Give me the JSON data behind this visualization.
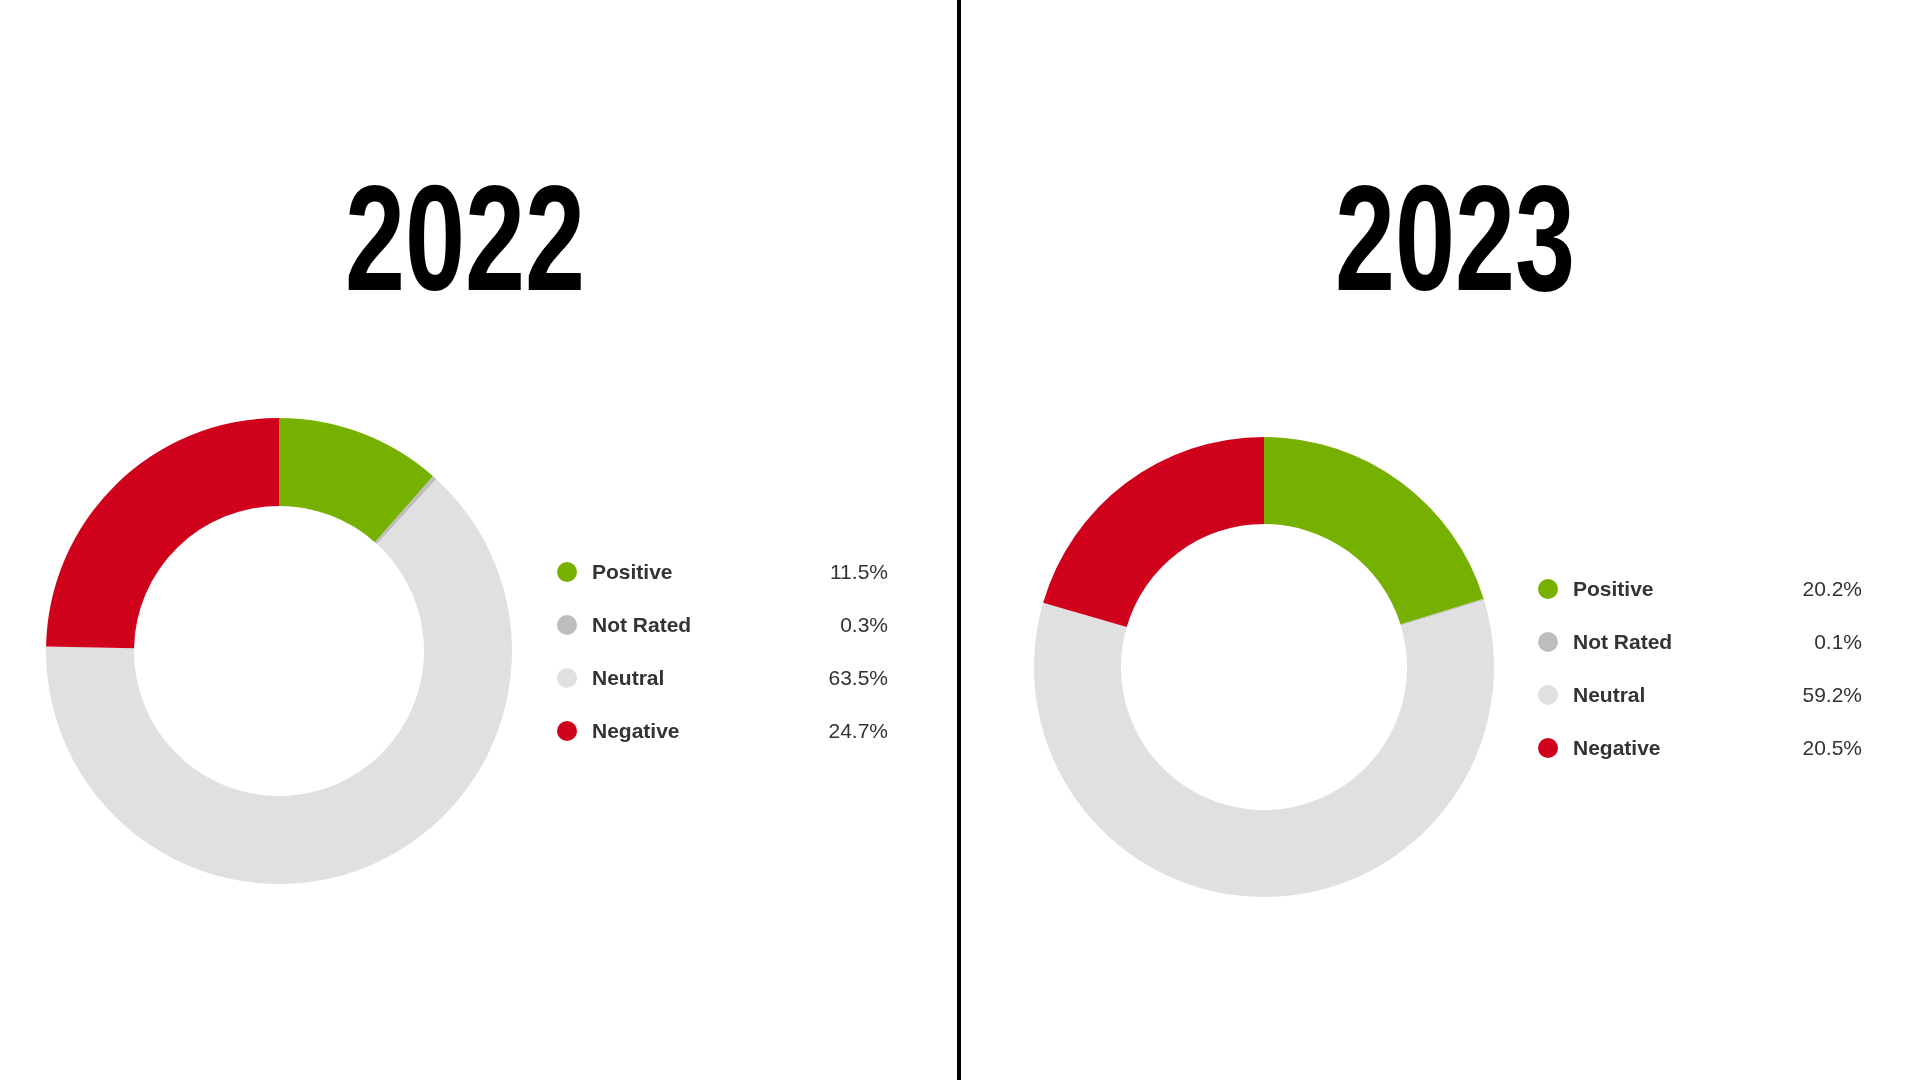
{
  "chart_data": [
    {
      "type": "donut",
      "title": "2022",
      "categories": [
        "Positive",
        "Not Rated",
        "Neutral",
        "Negative"
      ],
      "values": [
        11.5,
        0.3,
        63.5,
        24.7
      ],
      "colors": [
        "#76b000",
        "#bdbdbd",
        "#e0e0e0",
        "#d0021b"
      ],
      "value_labels": [
        "11.5%",
        "0.3%",
        "63.5%",
        "24.7%"
      ],
      "legend": "right"
    },
    {
      "type": "donut",
      "title": "2023",
      "categories": [
        "Positive",
        "Not Rated",
        "Neutral",
        "Negative"
      ],
      "values": [
        20.2,
        0.1,
        59.2,
        20.5
      ],
      "colors": [
        "#76b000",
        "#bdbdbd",
        "#e0e0e0",
        "#d0021b"
      ],
      "value_labels": [
        "20.2%",
        "0.1%",
        "59.2%",
        "20.5%"
      ],
      "legend": "right"
    }
  ]
}
